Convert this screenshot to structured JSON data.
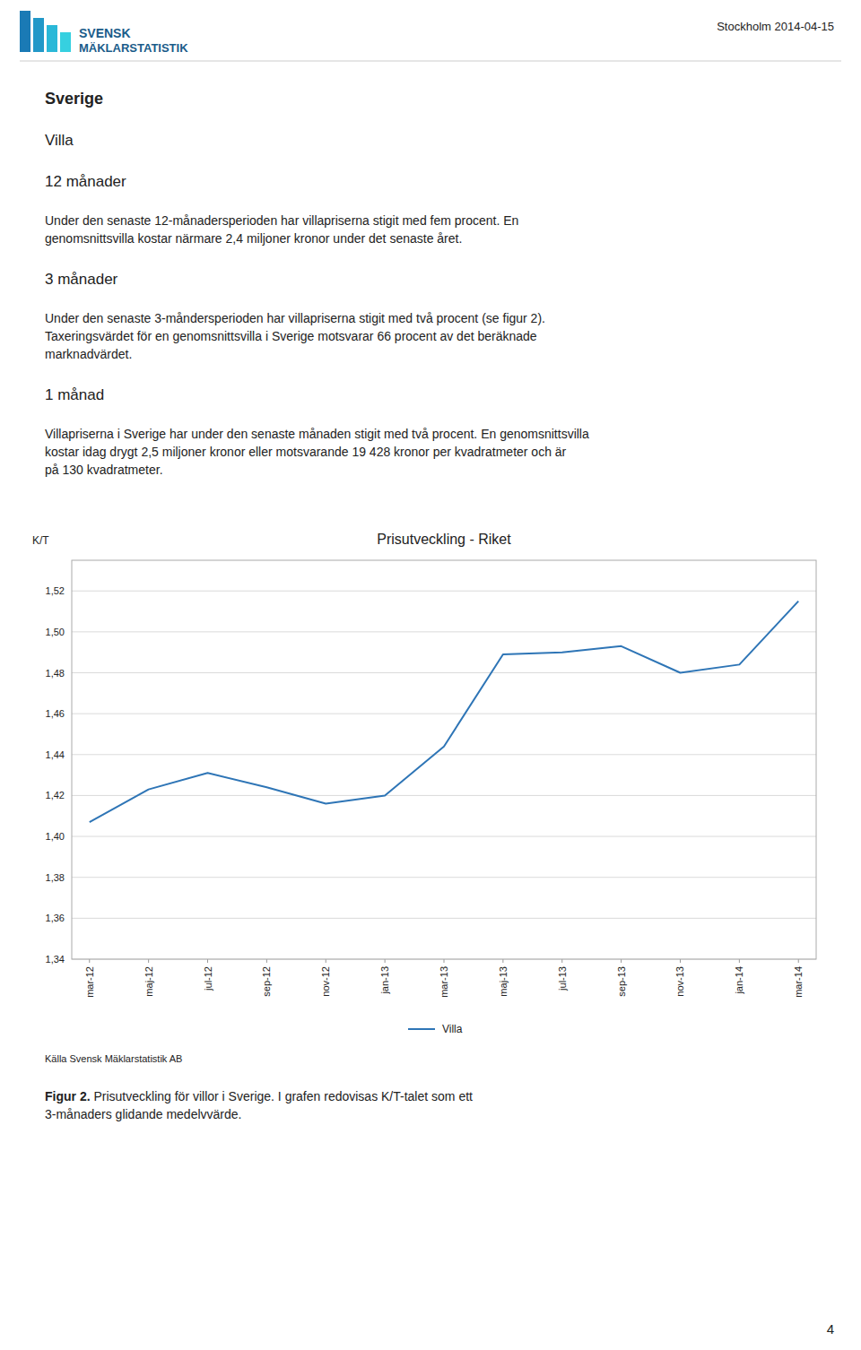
{
  "page": {
    "logo_text": [
      "SVENSK",
      "MÄKLARSTATISTIK"
    ],
    "logo_colors": [
      "#1a7ab5",
      "#2298c8",
      "#2ab8d8",
      "#36d0e0"
    ],
    "logo_text_color": "#1a5c8a",
    "date": "Stockholm 2014-04-15",
    "headings": [
      "Sverige",
      "Villa"
    ],
    "sections": [
      {
        "heading": "12 månader",
        "lines": [
          "Under den senaste 12-månadersperioden har villapriserna stigit med fem procent. En",
          "genomsnittsvilla kostar närmare 2,4 miljoner kronor under det senaste året."
        ]
      },
      {
        "heading": "3 månader",
        "lines": [
          "Under den senaste 3-måndersperioden har villapriserna stigit med två procent (se figur 2).",
          "Taxeringsvärdet för en genomsnittsvilla i Sverige motsvarar 66 procent av det beräknade",
          "marknadvärdet."
        ]
      },
      {
        "heading": "1 månad",
        "lines": [
          "Villapriserna i Sverige har under den senaste månaden stigit med två procent. En genomsnittsvilla",
          "kostar idag drygt 2,5 miljoner kronor eller motsvarande 19 428 kronor per kvadratmeter och är",
          "på 130 kvadratmeter."
        ]
      }
    ],
    "source": "Källa Svensk Mäklarstatistik AB",
    "caption": {
      "bold": "Figur 2.",
      "rest": " Prisutveckling för villor i Sverige. I grafen redovisas K/T-talet som ett",
      "line2": "3-månaders glidande medelvvärde."
    },
    "page_number": "4"
  },
  "chart_data": {
    "type": "line",
    "title": "Prisutveckling - Riket",
    "y_label": "K/T",
    "categories": [
      "mar-12",
      "maj-12",
      "jul-12",
      "sep-12",
      "nov-12",
      "jan-13",
      "mar-13",
      "maj-13",
      "jul-13",
      "sep-13",
      "nov-13",
      "jan-14",
      "mar-14"
    ],
    "series": [
      {
        "name": "Villa",
        "color": "#2E75B6",
        "values": [
          1.407,
          1.423,
          1.431,
          1.424,
          1.416,
          1.42,
          1.444,
          1.489,
          1.49,
          1.493,
          1.48,
          1.484,
          1.515
        ]
      }
    ],
    "ylim": [
      1.34,
      1.535
    ],
    "yticks": [
      {
        "value": 1.34,
        "label": "1,34"
      },
      {
        "value": 1.36,
        "label": "1,36"
      },
      {
        "value": 1.38,
        "label": "1,38"
      },
      {
        "value": 1.4,
        "label": "1,40"
      },
      {
        "value": 1.42,
        "label": "1,42"
      },
      {
        "value": 1.44,
        "label": "1,44"
      },
      {
        "value": 1.46,
        "label": "1,46"
      },
      {
        "value": 1.48,
        "label": "1,48"
      },
      {
        "value": 1.5,
        "label": "1,50"
      },
      {
        "value": 1.52,
        "label": "1,52"
      }
    ],
    "grid": true,
    "legend": "bottom"
  }
}
